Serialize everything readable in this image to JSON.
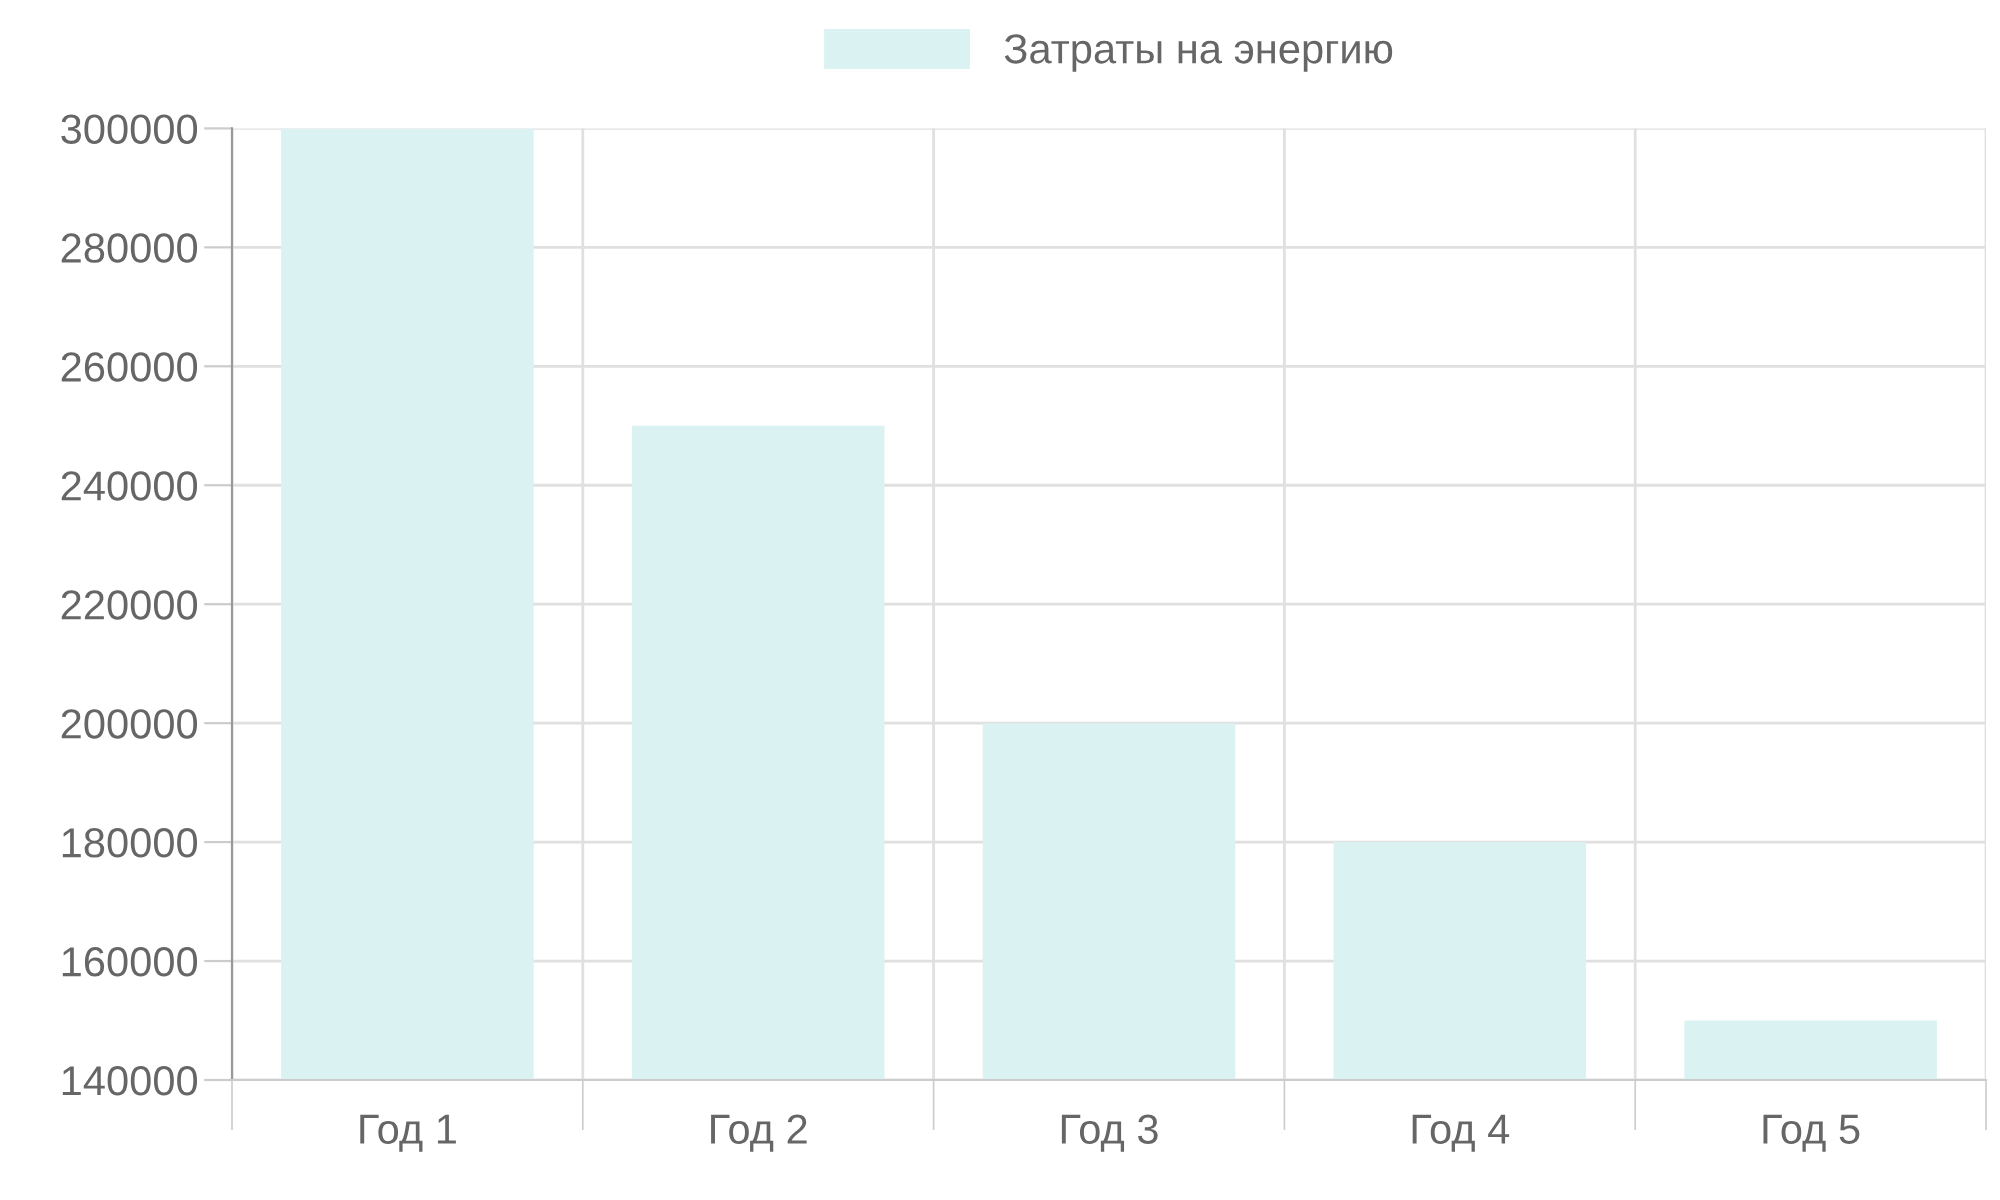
{
  "chart_data": {
    "type": "bar",
    "categories": [
      "Год 1",
      "Год 2",
      "Год 3",
      "Год 4",
      "Год 5"
    ],
    "series": [
      {
        "name": "Затраты на энергию",
        "color": "#dbf2f2",
        "values": [
          300000,
          250000,
          200000,
          180000,
          150000
        ]
      }
    ],
    "ylim": [
      140000,
      300000
    ],
    "yticks": [
      140000,
      160000,
      180000,
      200000,
      220000,
      240000,
      260000,
      280000,
      300000
    ],
    "grid": true,
    "legend": "top"
  }
}
